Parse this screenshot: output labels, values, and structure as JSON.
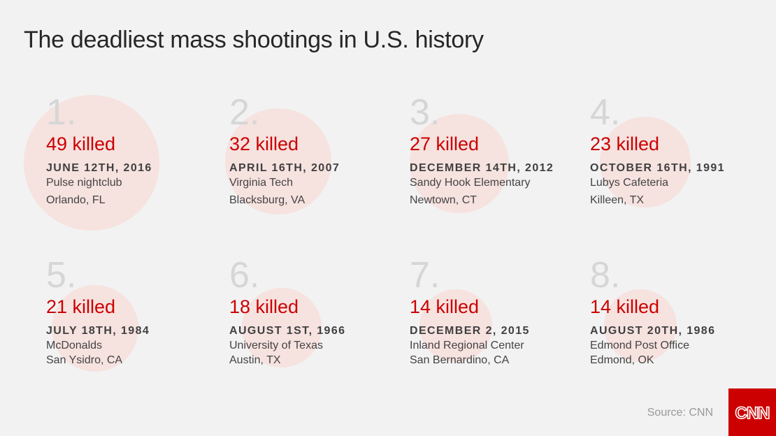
{
  "title": "The deadliest mass shootings in U.S. history",
  "source": "Source: CNN",
  "logo": "CNN",
  "accent_color": "#cc0000",
  "items": [
    {
      "rank": "1.",
      "killed": "49 killed",
      "date": "JUNE 12TH, 2016",
      "place": "Pulse nightclub",
      "city": "Orlando, FL"
    },
    {
      "rank": "2.",
      "killed": "32 killed",
      "date": "APRIL 16TH, 2007",
      "place": "Virginia Tech",
      "city": "Blacksburg, VA"
    },
    {
      "rank": "3.",
      "killed": "27 killed",
      "date": "DECEMBER 14TH, 2012",
      "place": "Sandy Hook Elementary",
      "city": "Newtown, CT"
    },
    {
      "rank": "4.",
      "killed": "23 killed",
      "date": "OCTOBER 16TH, 1991",
      "place": "Lubys Cafeteria",
      "city": "Killeen, TX"
    },
    {
      "rank": "5.",
      "killed": "21 killed",
      "date": "JULY 18TH, 1984",
      "place": "McDonalds",
      "city": "San Ysidro, CA"
    },
    {
      "rank": "6.",
      "killed": "18 killed",
      "date": "AUGUST 1ST, 1966",
      "place": "University of Texas",
      "city": "Austin, TX"
    },
    {
      "rank": "7.",
      "killed": "14 killed",
      "date": "DECEMBER 2, 2015",
      "place": "Inland Regional Center",
      "city": "San Bernardino, CA"
    },
    {
      "rank": "8.",
      "killed": "14 killed",
      "date": "AUGUST 20TH, 1986",
      "place": "Edmond Post Office",
      "city": "Edmond, OK"
    }
  ]
}
